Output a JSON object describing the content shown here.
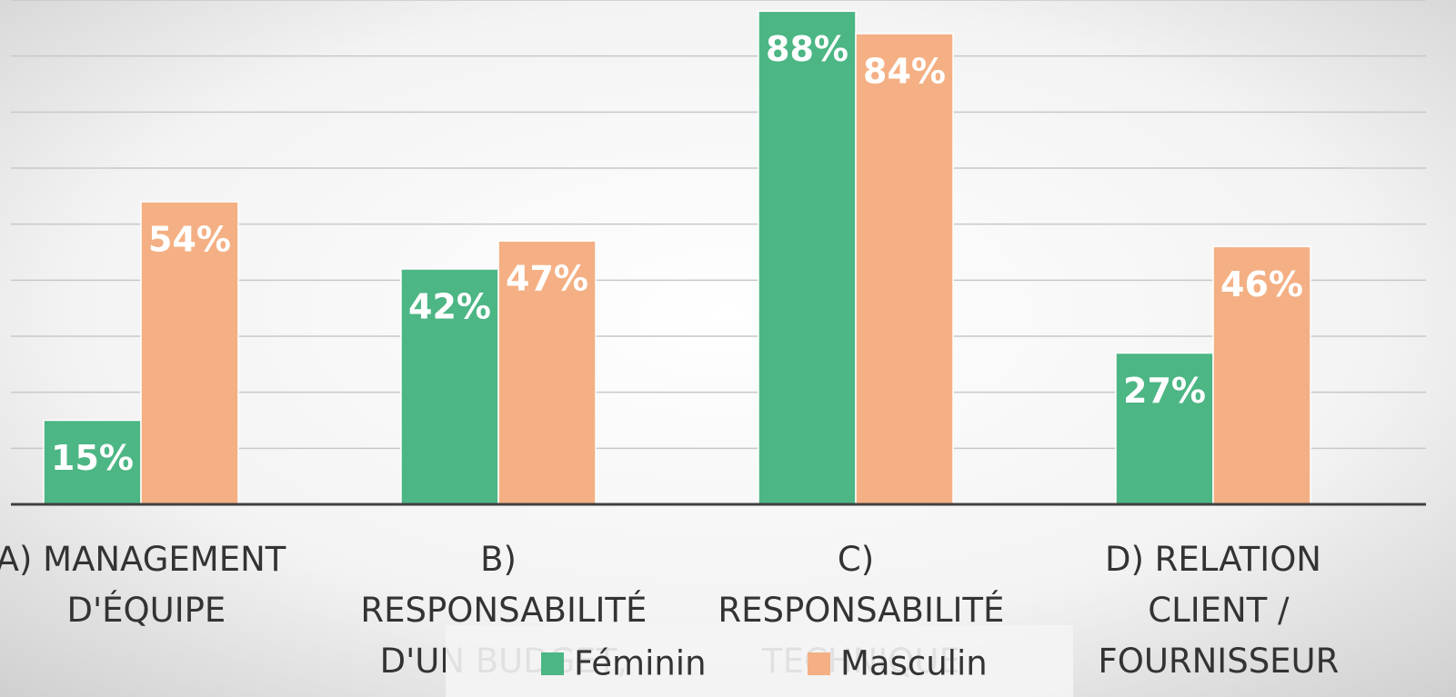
{
  "chart_data": {
    "type": "bar",
    "categories": [
      "A) MANAGEMENT D'ÉQUIPE",
      "B) RESPONSABILITÉ D'UN BUDGET,",
      "C) RESPONSABILITÉ TECHNIQUE",
      "D) RELATION CLIENT / FOURNISSEUR"
    ],
    "series": [
      {
        "name": "Féminin",
        "color": "#4cb684",
        "values": [
          15,
          42,
          88,
          27
        ],
        "value_labels": [
          "15%",
          "42%",
          "88%",
          "27%"
        ]
      },
      {
        "name": "Masculin",
        "color": "#f4b084",
        "values": [
          54,
          47,
          84,
          46
        ],
        "value_labels": [
          "54%",
          "47%",
          "84%",
          "46%"
        ]
      }
    ],
    "ylim": [
      0,
      90
    ],
    "yticks": [
      10,
      20,
      30,
      40,
      50,
      60,
      70,
      80,
      90
    ],
    "grid": true
  }
}
